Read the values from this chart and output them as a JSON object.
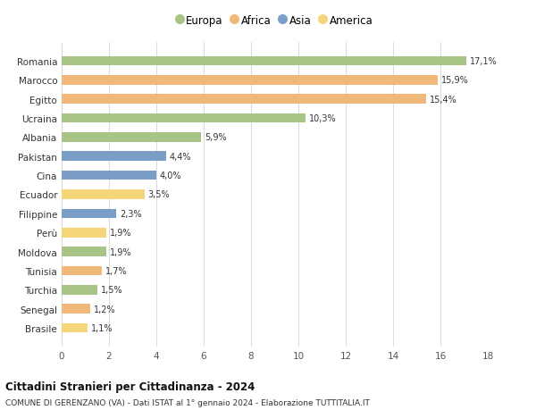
{
  "countries": [
    "Romania",
    "Marocco",
    "Egitto",
    "Ucraina",
    "Albania",
    "Pakistan",
    "Cina",
    "Ecuador",
    "Filippine",
    "Perù",
    "Moldova",
    "Tunisia",
    "Turchia",
    "Senegal",
    "Brasile"
  ],
  "values": [
    17.1,
    15.9,
    15.4,
    10.3,
    5.9,
    4.4,
    4.0,
    3.5,
    2.3,
    1.9,
    1.9,
    1.7,
    1.5,
    1.2,
    1.1
  ],
  "labels": [
    "17,1%",
    "15,9%",
    "15,4%",
    "10,3%",
    "5,9%",
    "4,4%",
    "4,0%",
    "3,5%",
    "2,3%",
    "1,9%",
    "1,9%",
    "1,7%",
    "1,5%",
    "1,2%",
    "1,1%"
  ],
  "continents": [
    "Europa",
    "Africa",
    "Africa",
    "Europa",
    "Europa",
    "Asia",
    "Asia",
    "America",
    "Asia",
    "America",
    "Europa",
    "Africa",
    "Europa",
    "Africa",
    "America"
  ],
  "colors": {
    "Europa": "#a8c487",
    "Africa": "#f0b97a",
    "Asia": "#7b9ec7",
    "America": "#f5d57a"
  },
  "legend_order": [
    "Europa",
    "Africa",
    "Asia",
    "America"
  ],
  "xlim": [
    0,
    18
  ],
  "xticks": [
    0,
    2,
    4,
    6,
    8,
    10,
    12,
    14,
    16,
    18
  ],
  "title": "Cittadini Stranieri per Cittadinanza - 2024",
  "subtitle": "COMUNE DI GERENZANO (VA) - Dati ISTAT al 1° gennaio 2024 - Elaborazione TUTTITALIA.IT",
  "bg_color": "#ffffff",
  "grid_color": "#dddddd",
  "bar_height": 0.5,
  "figsize": [
    6.0,
    4.6
  ],
  "dpi": 100
}
